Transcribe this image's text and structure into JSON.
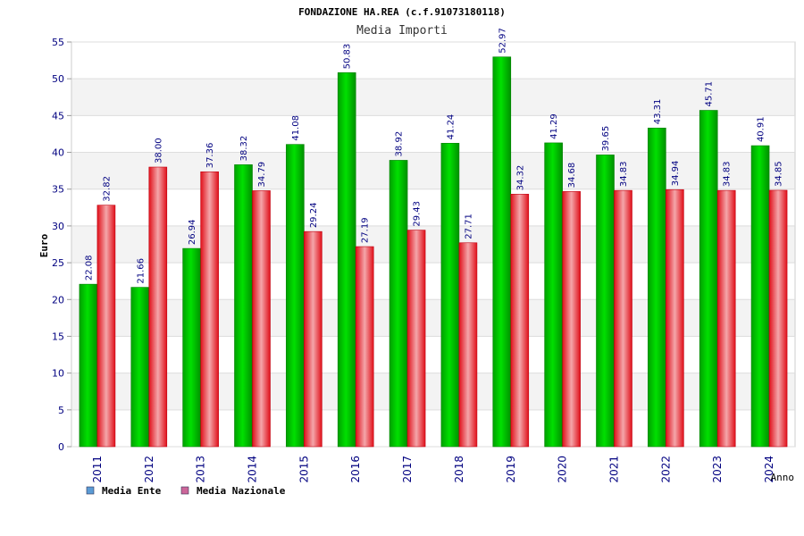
{
  "chart_data": {
    "type": "bar",
    "title": "FONDAZIONE HA.REA (c.f.91073180118)",
    "subtitle": "Media Importi",
    "xlabel": "Anno",
    "ylabel": "Euro",
    "ylim": [
      0,
      55
    ],
    "yticks": [
      "0",
      "5",
      "10",
      "15",
      "20",
      "25",
      "30",
      "35",
      "40",
      "45",
      "50",
      "55"
    ],
    "grid": true,
    "legend_position": "bottom-left",
    "categories": [
      "2011",
      "2012",
      "2013",
      "2014",
      "2015",
      "2016",
      "2017",
      "2018",
      "2019",
      "2020",
      "2021",
      "2022",
      "2023",
      "2024"
    ],
    "series": [
      {
        "name": "Media Ente",
        "color": "#00c000",
        "legend_color": "#5b9bd5",
        "values": [
          22.08,
          21.66,
          26.94,
          38.32,
          41.08,
          50.83,
          38.92,
          41.24,
          52.97,
          41.29,
          39.65,
          43.31,
          45.71,
          40.91
        ],
        "labels": [
          "22.08",
          "21.66",
          "26.94",
          "38.32",
          "41.08",
          "50.83",
          "38.92",
          "41.24",
          "52.97",
          "41.29",
          "39.65",
          "43.31",
          "45.71",
          "40.91"
        ]
      },
      {
        "name": "Media Nazionale",
        "color": "#e8141c",
        "legend_color": "#cc6699",
        "values": [
          32.82,
          38.0,
          37.36,
          34.79,
          29.24,
          27.19,
          29.43,
          27.71,
          34.32,
          34.68,
          34.83,
          34.94,
          34.83,
          34.85
        ],
        "labels": [
          "32.82",
          "38.00",
          "37.36",
          "34.79",
          "29.24",
          "27.19",
          "29.43",
          "27.71",
          "34.32",
          "34.68",
          "34.83",
          "34.94",
          "34.83",
          "34.85"
        ]
      }
    ]
  }
}
